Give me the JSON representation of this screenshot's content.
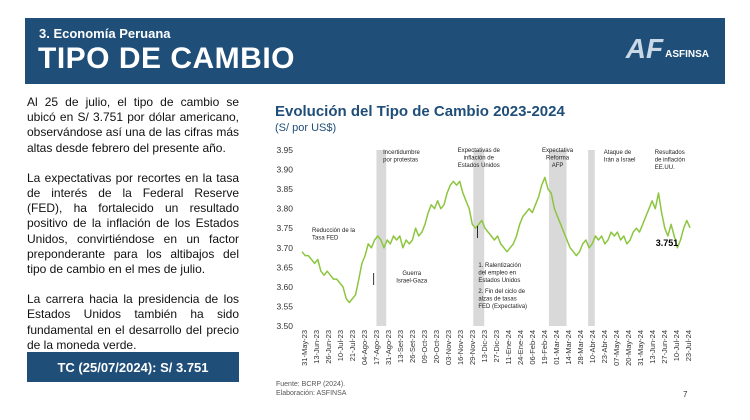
{
  "header": {
    "section": "3. Economía Peruana",
    "title": "TIPO DE CAMBIO",
    "logo_mark": "AF",
    "logo_text": "ASFINSA"
  },
  "text": {
    "p1": "Al 25 de julio, el tipo de cambio se ubicó en S/ 3.751 por dólar americano, observándose así una de las cifras más altas desde febrero del presente año.",
    "p2": "La expectativas por recortes en la tasa de interés de la Federal Reserve (FED), ha fortalecido un resultado positivo de la inflación de los Estados Unidos, convirtiéndose en un factor preponderante para los altibajos del tipo de cambio en el mes de julio.",
    "p3": "La carrera hacia la presidencia de los Estados Unidos también ha sido fundamental en el desarrollo del precio de la moneda verde.",
    "tc_box": "TC (25/07/2024): S/ 3.751"
  },
  "footer": {
    "source": "Fuente: BCRP (2024).",
    "prepared": "Elaboración: ASFINSA",
    "page": "7"
  },
  "colors": {
    "line": "#8cc63f",
    "band": "#d9d9d9",
    "brand": "#1f4e79"
  },
  "chart_data": {
    "type": "line",
    "title": "Evolución del Tipo de Cambio 2023-2024",
    "subtitle": "(S/ por US$)",
    "ylim": [
      3.5,
      3.95
    ],
    "yticks": [
      "3.95",
      "3.90",
      "3.85",
      "3.80",
      "3.75",
      "3.70",
      "3.65",
      "3.60",
      "3.55",
      "3.50"
    ],
    "x_tick_labels": [
      "31-May-23",
      "13-Jun-23",
      "26-Jun-23",
      "10-Jul-23",
      "21-Jul-23",
      "04-Ago-23",
      "17-Ago-23",
      "31-Ago-23",
      "13-Set-23",
      "26-Set-23",
      "09-Oct-23",
      "20-Oct-23",
      "03-Nov-23",
      "16-Nov-23",
      "29-Nov-23",
      "13-Dic-23",
      "27-Dic-23",
      "11-Ene-24",
      "24-Ene-24",
      "06-Feb-24",
      "19-Feb-24",
      "01-Mar-24",
      "14-Mar-24",
      "28-Mar-24",
      "10-Abr-24",
      "23-Abr-24",
      "07-May-24",
      "20-May-24",
      "31-May-24",
      "13-Jun-24",
      "27-Jun-24",
      "10-Jul-24",
      "23-Jul-24"
    ],
    "series": [
      {
        "name": "Tipo de cambio",
        "values": [
          3.69,
          3.68,
          3.68,
          3.67,
          3.66,
          3.67,
          3.64,
          3.63,
          3.64,
          3.63,
          3.62,
          3.62,
          3.61,
          3.6,
          3.57,
          3.56,
          3.57,
          3.58,
          3.62,
          3.66,
          3.68,
          3.71,
          3.7,
          3.72,
          3.73,
          3.72,
          3.7,
          3.72,
          3.71,
          3.73,
          3.72,
          3.73,
          3.7,
          3.72,
          3.71,
          3.72,
          3.75,
          3.73,
          3.74,
          3.76,
          3.79,
          3.81,
          3.8,
          3.82,
          3.8,
          3.81,
          3.84,
          3.86,
          3.87,
          3.86,
          3.87,
          3.84,
          3.82,
          3.8,
          3.76,
          3.75,
          3.76,
          3.77,
          3.75,
          3.74,
          3.73,
          3.72,
          3.73,
          3.71,
          3.7,
          3.69,
          3.7,
          3.71,
          3.73,
          3.76,
          3.78,
          3.79,
          3.8,
          3.79,
          3.81,
          3.83,
          3.86,
          3.88,
          3.85,
          3.84,
          3.8,
          3.78,
          3.76,
          3.74,
          3.72,
          3.7,
          3.69,
          3.68,
          3.69,
          3.71,
          3.72,
          3.7,
          3.71,
          3.73,
          3.72,
          3.73,
          3.71,
          3.72,
          3.74,
          3.73,
          3.74,
          3.72,
          3.73,
          3.71,
          3.72,
          3.74,
          3.75,
          3.74,
          3.76,
          3.78,
          3.8,
          3.82,
          3.8,
          3.84,
          3.79,
          3.75,
          3.73,
          3.76,
          3.73,
          3.7,
          3.72,
          3.75,
          3.77,
          3.751
        ]
      }
    ],
    "event_bands": [
      {
        "start": 0.195,
        "end": 0.22
      },
      {
        "start": 0.442,
        "end": 0.47
      },
      {
        "start": 0.635,
        "end": 0.68
      },
      {
        "start": 0.735,
        "end": 0.752
      }
    ],
    "annotations": [
      {
        "lines": [
          "Incertidumbre",
          "por protestas"
        ]
      },
      {
        "lines": [
          "Expectativas de",
          "inflación de",
          "Estados Unidos"
        ]
      },
      {
        "lines": [
          "Expectativa",
          "Reforma",
          "AFP"
        ]
      },
      {
        "lines": [
          "Ataque de",
          "Irán a Israel"
        ]
      },
      {
        "lines": [
          "Resultados",
          "de inflación",
          "EE.UU."
        ]
      },
      {
        "lines": [
          "Reducción de la",
          "Tasa FED"
        ]
      },
      {
        "lines": [
          "Guerra",
          "Israel-Gaza"
        ]
      },
      {
        "lines": [
          "1. Ralentización",
          "del empleo en",
          "Estados Unidos"
        ]
      },
      {
        "lines": [
          "2. Fin del ciclo de",
          "alzas de tasas",
          "FED (Expectativa)"
        ]
      }
    ],
    "last_value_label": "3.751"
  }
}
